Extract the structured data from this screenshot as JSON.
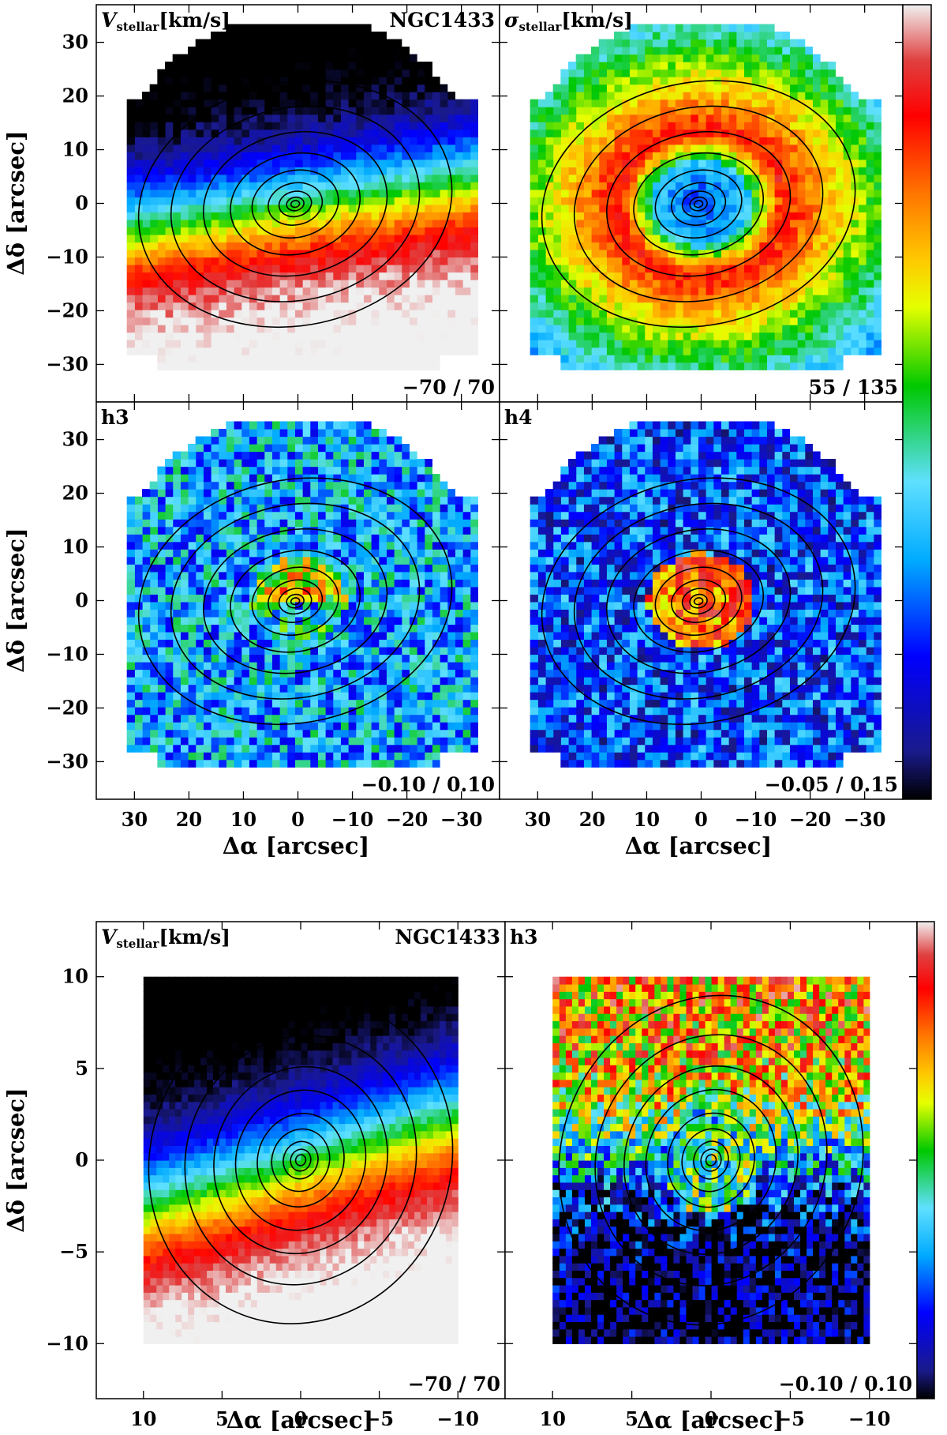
{
  "figure": {
    "galaxy": "NGC1433",
    "ylabel": "Δδ [arcsec]",
    "xlabel": "Δα [arcsec]"
  },
  "colormap": {
    "stops": [
      "#000000",
      "#1a1a8c",
      "#0000ff",
      "#00aaff",
      "#5fe0ff",
      "#00c800",
      "#e6ff00",
      "#ffc800",
      "#ff7800",
      "#ff0000",
      "#e04040",
      "#f0f0f0"
    ],
    "positions": [
      0.0,
      0.06,
      0.18,
      0.3,
      0.4,
      0.52,
      0.62,
      0.68,
      0.76,
      0.86,
      0.93,
      1.0
    ]
  },
  "chart_data": [
    {
      "type": "heatmap",
      "title": "V_stellar[km/s]",
      "title_main": "V",
      "title_sub": "stellar",
      "title_unit": "[km/s]",
      "label_right": "NGC1433",
      "range_text": "−70 / 70",
      "vmin": -70,
      "vmax": 70,
      "xlim": [
        37,
        -37
      ],
      "ylim": [
        -37,
        37
      ],
      "xticks": [
        30,
        20,
        10,
        0,
        -10,
        -20,
        -30
      ],
      "xtick_labels": [
        "30",
        "20",
        "10",
        "0",
        "−10",
        "−20",
        "−30"
      ],
      "yticks": [
        30,
        20,
        10,
        0,
        -10,
        -20,
        -30
      ],
      "ytick_labels": [
        "30",
        "20",
        "10",
        "0",
        "−10",
        "−20",
        "−30"
      ],
      "xlabel": "",
      "ylabel": "Δδ [arcsec]",
      "contour_levels": [
        0.8,
        1.6,
        3,
        5,
        8,
        12,
        17,
        23,
        29
      ],
      "field": "velocity",
      "extent": [
        -33,
        30,
        -31,
        32
      ],
      "pixel_arcsec": 1.4
    },
    {
      "type": "heatmap",
      "title": "σ_stellar[km/s]",
      "title_main": "σ",
      "title_sub": "stellar",
      "title_unit": "[km/s]",
      "label_right": "",
      "range_text": "55 / 135",
      "vmin": 55,
      "vmax": 135,
      "xlim": [
        37,
        -37
      ],
      "ylim": [
        -37,
        37
      ],
      "xticks": [
        30,
        20,
        10,
        0,
        -10,
        -20,
        -30
      ],
      "xtick_labels": [],
      "yticks": [
        30,
        20,
        10,
        0,
        -10,
        -20,
        -30
      ],
      "ytick_labels": [],
      "xlabel": "",
      "ylabel": "",
      "contour_levels": [
        0.8,
        1.6,
        3,
        5,
        8,
        12,
        17,
        23,
        29
      ],
      "field": "dispersion",
      "extent": [
        -33,
        30,
        -31,
        32
      ],
      "pixel_arcsec": 1.4
    },
    {
      "type": "heatmap",
      "title": "h3",
      "title_main": "h3",
      "title_sub": "",
      "title_unit": "",
      "label_right": "",
      "range_text": "−0.10 / 0.10",
      "vmin": -0.1,
      "vmax": 0.1,
      "xlim": [
        37,
        -37
      ],
      "ylim": [
        -37,
        37
      ],
      "xticks": [
        30,
        20,
        10,
        0,
        -10,
        -20,
        -30
      ],
      "xtick_labels": [
        "30",
        "20",
        "10",
        "0",
        "−10",
        "−20",
        "−30"
      ],
      "yticks": [
        30,
        20,
        10,
        0,
        -10,
        -20,
        -30
      ],
      "ytick_labels": [
        "30",
        "20",
        "10",
        "0",
        "−10",
        "−20",
        "−30"
      ],
      "xlabel": "Δα [arcsec]",
      "ylabel": "Δδ [arcsec]",
      "contour_levels": [
        0.8,
        1.6,
        3,
        5,
        8,
        12,
        17,
        23,
        29
      ],
      "field": "h3",
      "extent": [
        -33,
        30,
        -31,
        32
      ],
      "pixel_arcsec": 1.4
    },
    {
      "type": "heatmap",
      "title": "h4",
      "title_main": "h4",
      "title_sub": "",
      "title_unit": "",
      "label_right": "",
      "range_text": "−0.05 / 0.15",
      "vmin": -0.05,
      "vmax": 0.15,
      "xlim": [
        37,
        -37
      ],
      "ylim": [
        -37,
        37
      ],
      "xticks": [
        30,
        20,
        10,
        0,
        -10,
        -20,
        -30
      ],
      "xtick_labels": [
        "30",
        "20",
        "10",
        "0",
        "−10",
        "−20",
        "−30"
      ],
      "yticks": [
        30,
        20,
        10,
        0,
        -10,
        -20,
        -30
      ],
      "ytick_labels": [],
      "xlabel": "Δα [arcsec]",
      "ylabel": "",
      "contour_levels": [
        0.8,
        1.6,
        3,
        5,
        8,
        12,
        17,
        23,
        29
      ],
      "field": "h4",
      "extent": [
        -33,
        30,
        -31,
        32
      ],
      "pixel_arcsec": 1.4
    },
    {
      "type": "heatmap",
      "title": "V_stellar[km/s]",
      "title_main": "V",
      "title_sub": "stellar",
      "title_unit": "[km/s]",
      "label_right": "NGC1433",
      "range_text": "−70 / 70",
      "vmin": -70,
      "vmax": 70,
      "xlim": [
        13,
        -13
      ],
      "ylim": [
        -13,
        13
      ],
      "xticks": [
        10,
        5,
        0,
        -5,
        -10
      ],
      "xtick_labels": [
        "10",
        "5",
        "0",
        "−5",
        "−10"
      ],
      "yticks": [
        10,
        5,
        0,
        -5,
        -10
      ],
      "ytick_labels": [
        "10",
        "5",
        "0",
        "−5",
        "−10"
      ],
      "xlabel": "Δα [arcsec]",
      "ylabel": "Δδ [arcsec]",
      "contour_levels": [
        0.35,
        0.7,
        1.2,
        2,
        3,
        4.5,
        6,
        8,
        10.5
      ],
      "field": "velocity_zoom",
      "extent": [
        -10,
        10,
        -10,
        10
      ],
      "pixel_arcsec": 0.4
    },
    {
      "type": "heatmap",
      "title": "h3",
      "title_main": "h3",
      "title_sub": "",
      "title_unit": "",
      "label_right": "",
      "range_text": "−0.10 / 0.10",
      "vmin": -0.1,
      "vmax": 0.1,
      "xlim": [
        13,
        -13
      ],
      "ylim": [
        -13,
        13
      ],
      "xticks": [
        10,
        5,
        0,
        -5,
        -10
      ],
      "xtick_labels": [
        "10",
        "5",
        "0",
        "−5",
        "−10"
      ],
      "yticks": [
        10,
        5,
        0,
        -5,
        -10
      ],
      "ytick_labels": [],
      "xlabel": "Δα [arcsec]",
      "ylabel": "",
      "contour_levels": [
        0.35,
        0.7,
        1.2,
        2,
        3,
        4.5,
        6,
        8,
        10.5
      ],
      "field": "h3_zoom",
      "extent": [
        -10,
        10,
        -10,
        10
      ],
      "pixel_arcsec": 0.4
    }
  ]
}
